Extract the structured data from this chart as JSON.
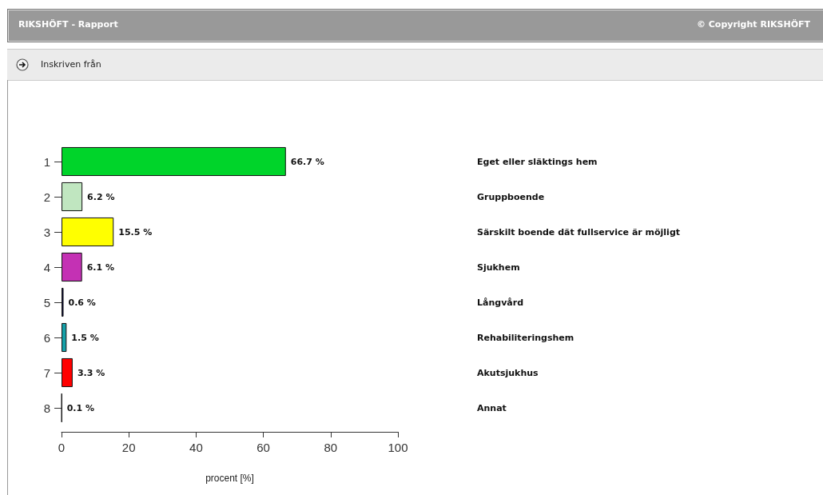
{
  "chart_data": {
    "type": "bar",
    "orientation": "horizontal",
    "title": "RIKSHÖFT - Rapport",
    "subtitle": "Inskriven från",
    "xlabel": "procent [%]",
    "categories": [
      "1",
      "2",
      "3",
      "4",
      "5",
      "6",
      "7",
      "8"
    ],
    "values": [
      66.7,
      6.2,
      15.5,
      6.1,
      0.6,
      1.5,
      3.3,
      0.1
    ],
    "colors": [
      "#00d42a",
      "#c0e6c0",
      "#ffff00",
      "#c431b4",
      "#1a1a5e",
      "#15a0a8",
      "#ff0000",
      "#111111"
    ],
    "value_labels": [
      "66.7 %",
      "6.2 %",
      "15.5 %",
      "6.1 %",
      "0.6 %",
      "1.5 %",
      "3.3 %",
      "0.1 %"
    ],
    "xlim": [
      0,
      100
    ],
    "xticks": [
      0,
      20,
      40,
      60,
      80,
      100
    ],
    "grid": false,
    "annotations": [
      "© Copyright RIKSHÖFT",
      "Eget eller släktings hem",
      "Gruppboende",
      "Särskilt boende dät fullservice är möjligt",
      "Sjukhem",
      "Långvård",
      "Rehabiliteringshem",
      "Akutsjukhus",
      "Annat"
    ]
  }
}
